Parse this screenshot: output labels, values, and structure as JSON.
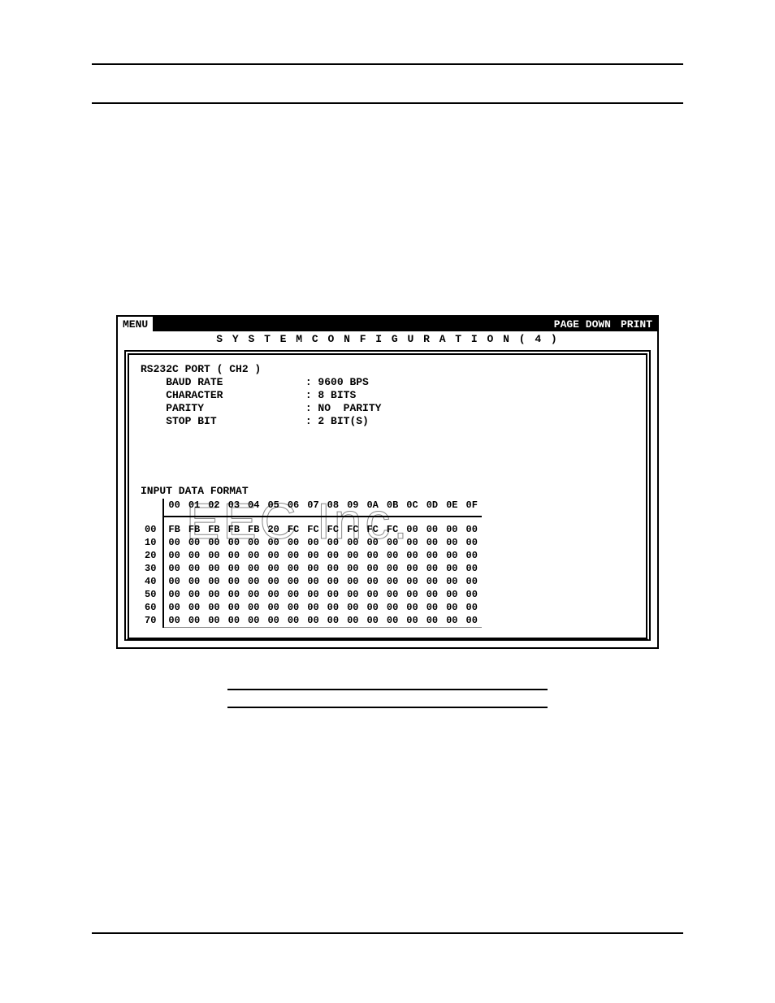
{
  "titlebar": {
    "menu": "MENU",
    "page_down": "PAGE DOWN",
    "print": "PRINT"
  },
  "subtitle": "S Y S T E M   C O N F I G U R A T I O N   ( 4 )",
  "port": {
    "title": "RS232C PORT ( CH2 )",
    "rows": [
      {
        "label": "BAUD RATE",
        "value": "9600 BPS"
      },
      {
        "label": "CHARACTER",
        "value": "8 BITS"
      },
      {
        "label": "PARITY",
        "value": "NO  PARITY"
      },
      {
        "label": "STOP BIT",
        "value": "2 BIT(S)"
      }
    ]
  },
  "watermark": "EEC Inc.",
  "hex": {
    "title": "INPUT DATA FORMAT",
    "col_headers": [
      "00",
      "01",
      "02",
      "03",
      "04",
      "05",
      "06",
      "07",
      "08",
      "09",
      "0A",
      "0B",
      "0C",
      "0D",
      "0E",
      "0F"
    ],
    "row_headers": [
      "00",
      "10",
      "20",
      "30",
      "40",
      "50",
      "60",
      "70"
    ],
    "rows": [
      [
        "FB",
        "FB",
        "FB",
        "FB",
        "FB",
        "20",
        "FC",
        "FC",
        "FC",
        "FC",
        "FC",
        "FC",
        "00",
        "00",
        "00",
        "00"
      ],
      [
        "00",
        "00",
        "00",
        "00",
        "00",
        "00",
        "00",
        "00",
        "00",
        "00",
        "00",
        "00",
        "00",
        "00",
        "00",
        "00"
      ],
      [
        "00",
        "00",
        "00",
        "00",
        "00",
        "00",
        "00",
        "00",
        "00",
        "00",
        "00",
        "00",
        "00",
        "00",
        "00",
        "00"
      ],
      [
        "00",
        "00",
        "00",
        "00",
        "00",
        "00",
        "00",
        "00",
        "00",
        "00",
        "00",
        "00",
        "00",
        "00",
        "00",
        "00"
      ],
      [
        "00",
        "00",
        "00",
        "00",
        "00",
        "00",
        "00",
        "00",
        "00",
        "00",
        "00",
        "00",
        "00",
        "00",
        "00",
        "00"
      ],
      [
        "00",
        "00",
        "00",
        "00",
        "00",
        "00",
        "00",
        "00",
        "00",
        "00",
        "00",
        "00",
        "00",
        "00",
        "00",
        "00"
      ],
      [
        "00",
        "00",
        "00",
        "00",
        "00",
        "00",
        "00",
        "00",
        "00",
        "00",
        "00",
        "00",
        "00",
        "00",
        "00",
        "00"
      ],
      [
        "00",
        "00",
        "00",
        "00",
        "00",
        "00",
        "00",
        "00",
        "00",
        "00",
        "00",
        "00",
        "00",
        "00",
        "00",
        "00"
      ]
    ]
  },
  "colors": {
    "fg": "#000000",
    "bg": "#ffffff",
    "watermark_stroke": "#888888"
  }
}
